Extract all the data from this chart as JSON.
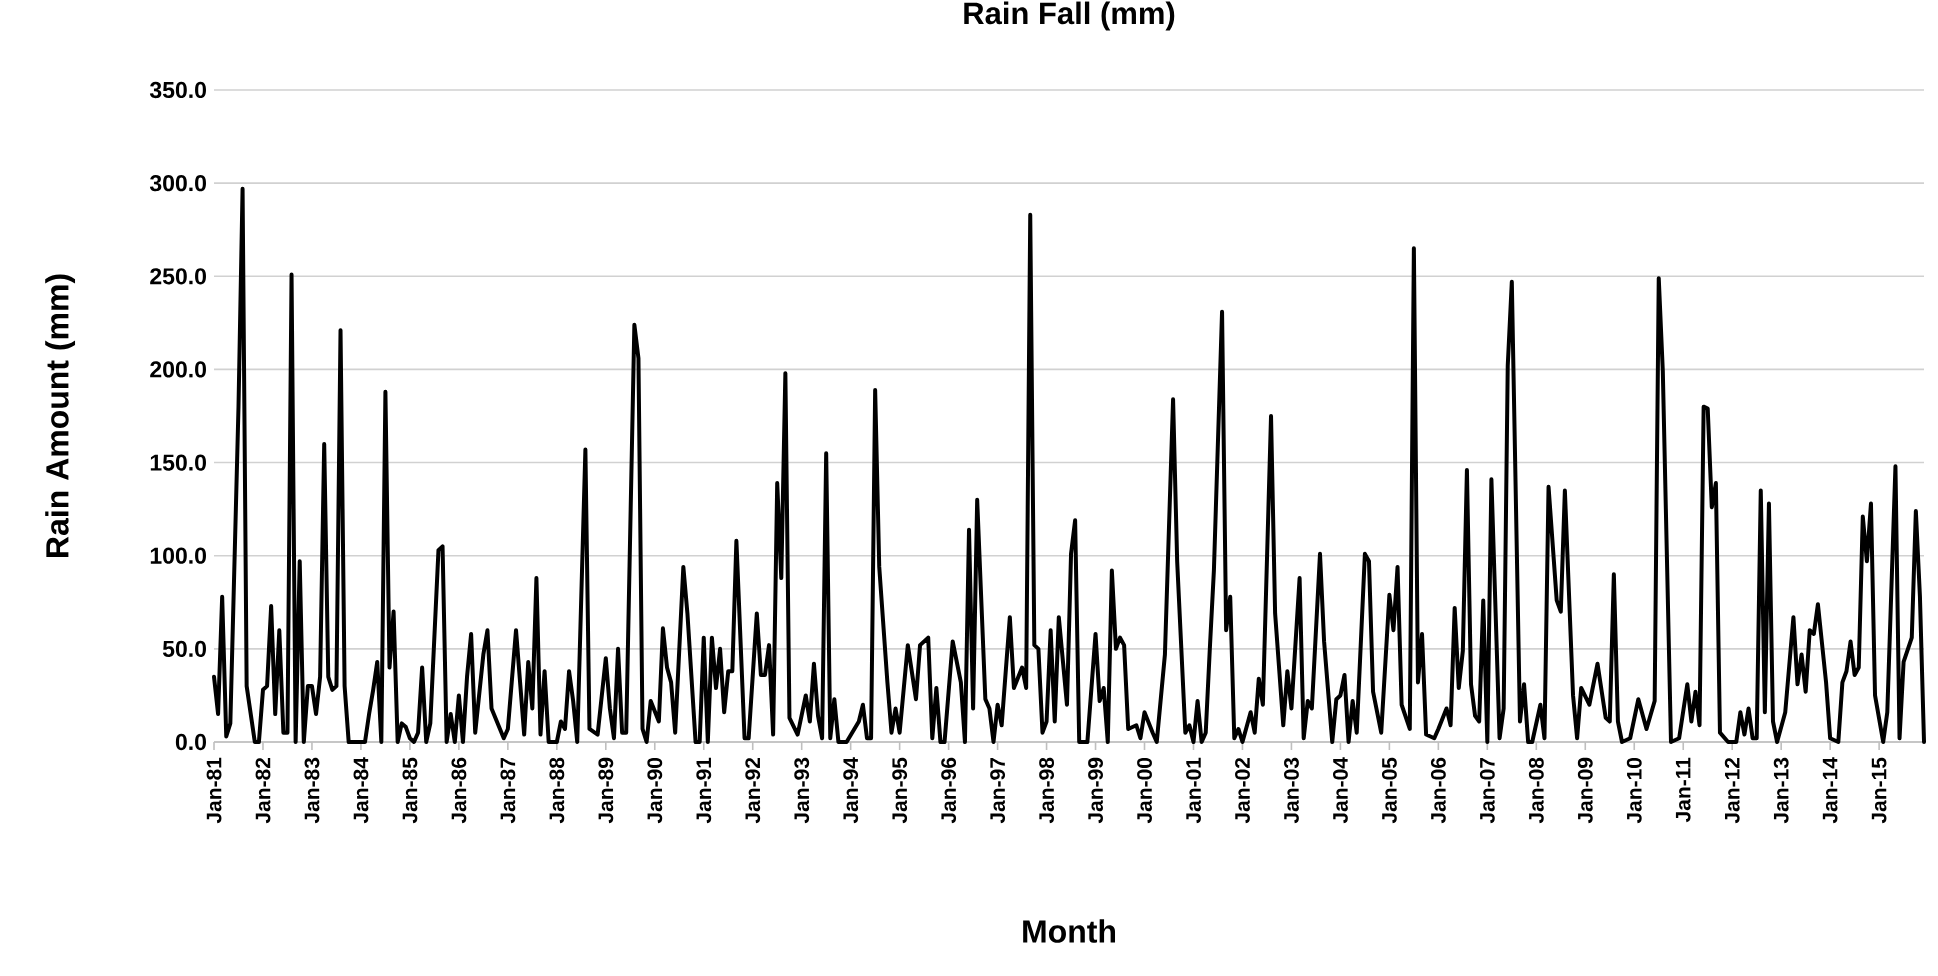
{
  "chart_data": {
    "type": "line",
    "title": "Rain Fall (mm)",
    "xlabel": "Month",
    "ylabel": "Rain Amount (mm)",
    "color": "#000000",
    "grid": "y",
    "x": [
      "1981-01",
      "1981-02",
      "1981-03",
      "1981-04",
      "1981-05",
      "1981-07",
      "1981-08",
      "1981-09",
      "1981-11",
      "1981-12",
      "1982-01",
      "1982-02",
      "1982-03",
      "1982-04",
      "1982-05",
      "1982-06",
      "1982-07",
      "1982-08",
      "1982-09",
      "1982-10",
      "1982-11",
      "1982-12",
      "1983-01",
      "1983-02",
      "1983-03",
      "1983-04",
      "1983-05",
      "1983-06",
      "1983-07",
      "1983-08",
      "1983-09",
      "1983-10",
      "1983-11",
      "1983-12",
      "1984-01",
      "1984-02",
      "1984-03",
      "1984-04",
      "1984-05",
      "1984-06",
      "1984-07",
      "1984-08",
      "1984-09",
      "1984-10",
      "1984-11",
      "1984-12",
      "1985-01",
      "1985-02",
      "1985-03",
      "1985-04",
      "1985-05",
      "1985-06",
      "1985-08",
      "1985-09",
      "1985-10",
      "1985-11",
      "1985-12",
      "1986-01",
      "1986-02",
      "1986-03",
      "1986-04",
      "1986-05",
      "1986-07",
      "1986-08",
      "1986-09",
      "1986-12",
      "1987-01",
      "1987-03",
      "1987-05",
      "1987-06",
      "1987-07",
      "1987-08",
      "1987-09",
      "1987-10",
      "1987-11",
      "1988-01",
      "1988-02",
      "1988-03",
      "1988-04",
      "1988-05",
      "1988-06",
      "1988-08",
      "1988-09",
      "1988-11",
      "1989-01",
      "1989-02",
      "1989-03",
      "1989-04",
      "1989-05",
      "1989-06",
      "1989-08",
      "1989-09",
      "1989-10",
      "1989-11",
      "1989-12",
      "1990-02",
      "1990-03",
      "1990-04",
      "1990-05",
      "1990-06",
      "1990-08",
      "1990-09",
      "1990-11",
      "1990-12",
      "1991-01",
      "1991-02",
      "1991-03",
      "1991-04",
      "1991-05",
      "1991-06",
      "1991-07",
      "1991-08",
      "1991-09",
      "1991-11",
      "1991-12",
      "1992-02",
      "1992-03",
      "1992-04",
      "1992-05",
      "1992-06",
      "1992-07",
      "1992-08",
      "1992-09",
      "1992-10",
      "1992-12",
      "1993-02",
      "1993-03",
      "1993-04",
      "1993-05",
      "1993-06",
      "1993-07",
      "1993-08",
      "1993-09",
      "1993-10",
      "1993-12",
      "1994-03",
      "1994-04",
      "1994-05",
      "1994-06",
      "1994-07",
      "1994-08",
      "1994-10",
      "1994-11",
      "1994-12",
      "1995-01",
      "1995-03",
      "1995-05",
      "1995-06",
      "1995-08",
      "1995-09",
      "1995-10",
      "1995-11",
      "1995-12",
      "1996-02",
      "1996-04",
      "1996-05",
      "1996-06",
      "1996-07",
      "1996-08",
      "1996-10",
      "1996-11",
      "1996-12",
      "1997-01",
      "1997-02",
      "1997-04",
      "1997-05",
      "1997-07",
      "1997-08",
      "1997-09",
      "1997-10",
      "1997-11",
      "1997-12",
      "1998-01",
      "1998-02",
      "1998-03",
      "1998-04",
      "1998-06",
      "1998-07",
      "1998-08",
      "1998-09",
      "1998-11",
      "1999-01",
      "1999-02",
      "1999-03",
      "1999-04",
      "1999-05",
      "1999-06",
      "1999-07",
      "1999-08",
      "1999-09",
      "1999-11",
      "1999-12",
      "2000-01",
      "2000-03",
      "2000-04",
      "2000-06",
      "2000-08",
      "2000-09",
      "2000-11",
      "2000-12",
      "2001-01",
      "2001-02",
      "2001-03",
      "2001-04",
      "2001-05",
      "2001-06",
      "2001-08",
      "2001-09",
      "2001-10",
      "2001-11",
      "2001-12",
      "2002-01",
      "2002-03",
      "2002-04",
      "2002-05",
      "2002-06",
      "2002-08",
      "2002-09",
      "2002-11",
      "2002-12",
      "2003-01",
      "2003-03",
      "2003-04",
      "2003-05",
      "2003-06",
      "2003-08",
      "2003-09",
      "2003-11",
      "2003-12",
      "2004-01",
      "2004-02",
      "2004-03",
      "2004-04",
      "2004-05",
      "2004-07",
      "2004-08",
      "2004-09",
      "2004-11",
      "2005-01",
      "2005-02",
      "2005-03",
      "2005-04",
      "2005-06",
      "2005-07",
      "2005-08",
      "2005-09",
      "2005-10",
      "2005-12",
      "2006-01",
      "2006-03",
      "2006-04",
      "2006-05",
      "2006-06",
      "2006-07",
      "2006-08",
      "2006-09",
      "2006-10",
      "2006-11",
      "2006-12",
      "2007-01",
      "2007-02",
      "2007-04",
      "2007-05",
      "2007-06",
      "2007-07",
      "2007-09",
      "2007-10",
      "2007-11",
      "2007-12",
      "2008-02",
      "2008-03",
      "2008-04",
      "2008-06",
      "2008-07",
      "2008-08",
      "2008-10",
      "2008-11",
      "2008-12",
      "2009-02",
      "2009-04",
      "2009-06",
      "2009-07",
      "2009-08",
      "2009-09",
      "2009-10",
      "2009-12",
      "2010-02",
      "2010-04",
      "2010-06",
      "2010-07",
      "2010-08",
      "2010-10",
      "2010-12",
      "2011-02",
      "2011-03",
      "2011-04",
      "2011-05",
      "2011-06",
      "2011-07",
      "2011-08",
      "2011-09",
      "2011-10",
      "2011-12",
      "2012-02",
      "2012-03",
      "2012-04",
      "2012-05",
      "2012-06",
      "2012-07",
      "2012-08",
      "2012-09",
      "2012-10",
      "2012-11",
      "2012-12",
      "2013-02",
      "2013-04",
      "2013-05",
      "2013-06",
      "2013-07",
      "2013-08",
      "2013-09",
      "2013-10",
      "2013-12",
      "2014-01",
      "2014-03",
      "2014-04",
      "2014-05",
      "2014-06",
      "2014-07",
      "2014-08",
      "2014-09",
      "2014-10",
      "2014-11",
      "2014-12",
      "2015-02",
      "2015-03",
      "2015-05",
      "2015-06",
      "2015-07",
      "2015-09",
      "2015-10",
      "2015-11",
      "2015-12"
    ],
    "values": [
      35,
      15,
      78,
      3,
      10,
      180,
      297,
      30,
      0,
      0,
      28,
      30,
      73,
      15,
      60,
      5,
      5,
      251,
      0,
      97,
      0,
      30,
      30,
      15,
      35,
      160,
      35,
      28,
      30,
      221,
      30,
      0,
      0,
      0,
      0,
      0,
      15,
      28,
      43,
      0,
      188,
      40,
      70,
      0,
      10,
      8,
      2,
      0,
      5,
      40,
      0,
      10,
      103,
      105,
      0,
      15,
      0,
      25,
      0,
      35,
      58,
      5,
      47,
      60,
      18,
      2,
      7,
      60,
      4,
      43,
      18,
      88,
      4,
      38,
      0,
      0,
      11,
      7,
      38,
      22,
      0,
      157,
      7,
      4,
      45,
      18,
      2,
      50,
      5,
      5,
      224,
      206,
      7,
      0,
      22,
      11,
      61,
      40,
      32,
      5,
      94,
      69,
      0,
      0,
      56,
      0,
      56,
      29,
      50,
      16,
      38,
      38,
      108,
      2,
      2,
      69,
      36,
      36,
      52,
      4,
      139,
      88,
      198,
      13,
      4,
      25,
      11,
      42,
      14,
      2,
      155,
      2,
      23,
      0,
      0,
      11,
      20,
      2,
      2,
      189,
      94,
      32,
      5,
      18,
      5,
      52,
      23,
      52,
      56,
      2,
      29,
      0,
      0,
      54,
      32,
      0,
      114,
      18,
      130,
      23,
      18,
      0,
      20,
      9,
      67,
      29,
      40,
      29,
      283,
      52,
      50,
      5,
      11,
      60,
      11,
      67,
      20,
      101,
      119,
      0,
      0,
      58,
      22,
      29,
      0,
      92,
      50,
      56,
      52,
      7,
      9,
      2,
      16,
      5,
      0,
      47,
      184,
      97,
      5,
      9,
      0,
      22,
      0,
      5,
      50,
      92,
      231,
      60,
      78,
      2,
      7,
      0,
      16,
      5,
      34,
      20,
      175,
      69,
      9,
      38,
      18,
      88,
      2,
      22,
      18,
      101,
      54,
      0,
      23,
      25,
      36,
      0,
      22,
      5,
      101,
      97,
      27,
      5,
      79,
      60,
      94,
      20,
      7,
      265,
      32,
      58,
      4,
      2,
      7,
      18,
      9,
      72,
      29,
      49,
      146,
      31,
      14,
      11,
      76,
      0,
      141,
      2,
      18,
      202,
      247,
      11,
      31,
      0,
      0,
      20,
      2,
      137,
      76,
      70,
      135,
      25,
      2,
      29,
      20,
      42,
      13,
      11,
      90,
      11,
      0,
      2,
      23,
      7,
      22,
      249,
      199,
      0,
      2,
      31,
      11,
      27,
      9,
      180,
      179,
      126,
      139,
      5,
      0,
      0,
      16,
      4,
      18,
      2,
      2,
      135,
      16,
      128,
      11,
      0,
      16,
      67,
      31,
      47,
      27,
      60,
      58,
      74,
      32,
      2,
      0,
      32,
      38,
      54,
      36,
      40,
      121,
      97,
      128,
      25,
      0,
      16,
      148,
      2,
      43,
      56,
      124,
      78,
      0
    ],
    "xlim": [
      "1981-01",
      "2015-12"
    ],
    "xticks": [
      {
        "value": "1981-01",
        "label": "Jan-81"
      },
      {
        "value": "1982-01",
        "label": "Jan-82"
      },
      {
        "value": "1983-01",
        "label": "Jan-83"
      },
      {
        "value": "1984-01",
        "label": "Jan-84"
      },
      {
        "value": "1985-01",
        "label": "Jan-85"
      },
      {
        "value": "1986-01",
        "label": "Jan-86"
      },
      {
        "value": "1987-01",
        "label": "Jan-87"
      },
      {
        "value": "1988-01",
        "label": "Jan-88"
      },
      {
        "value": "1989-01",
        "label": "Jan-89"
      },
      {
        "value": "1990-01",
        "label": "Jan-90"
      },
      {
        "value": "1991-01",
        "label": "Jan-91"
      },
      {
        "value": "1992-01",
        "label": "Jan-92"
      },
      {
        "value": "1993-01",
        "label": "Jan-93"
      },
      {
        "value": "1994-01",
        "label": "Jan-94"
      },
      {
        "value": "1995-01",
        "label": "Jan-95"
      },
      {
        "value": "1996-01",
        "label": "Jan-96"
      },
      {
        "value": "1997-01",
        "label": "Jan-97"
      },
      {
        "value": "1998-01",
        "label": "Jan-98"
      },
      {
        "value": "1999-01",
        "label": "Jan-99"
      },
      {
        "value": "2000-01",
        "label": "Jan-00"
      },
      {
        "value": "2001-01",
        "label": "Jan-01"
      },
      {
        "value": "2002-01",
        "label": "Jan-02"
      },
      {
        "value": "2003-01",
        "label": "Jan-03"
      },
      {
        "value": "2004-01",
        "label": "Jan-04"
      },
      {
        "value": "2005-01",
        "label": "Jan-05"
      },
      {
        "value": "2006-01",
        "label": "Jan-06"
      },
      {
        "value": "2007-01",
        "label": "Jan-07"
      },
      {
        "value": "2008-01",
        "label": "Jan-08"
      },
      {
        "value": "2009-01",
        "label": "Jan-09"
      },
      {
        "value": "2010-01",
        "label": "Jan-10"
      },
      {
        "value": "2011-01",
        "label": "Jan-11"
      },
      {
        "value": "2012-01",
        "label": "Jan-12"
      },
      {
        "value": "2013-01",
        "label": "Jan-13"
      },
      {
        "value": "2014-01",
        "label": "Jan-14"
      },
      {
        "value": "2015-01",
        "label": "Jan-15"
      }
    ],
    "ylim": [
      0,
      350
    ],
    "yticks": [
      {
        "value": 0,
        "label": "0.0"
      },
      {
        "value": 50,
        "label": "50.0"
      },
      {
        "value": 100,
        "label": "100.0"
      },
      {
        "value": 150,
        "label": "150.0"
      },
      {
        "value": 200,
        "label": "200.0"
      },
      {
        "value": 250,
        "label": "250.0"
      },
      {
        "value": 300,
        "label": "300.0"
      },
      {
        "value": 350,
        "label": "350.0"
      }
    ]
  }
}
